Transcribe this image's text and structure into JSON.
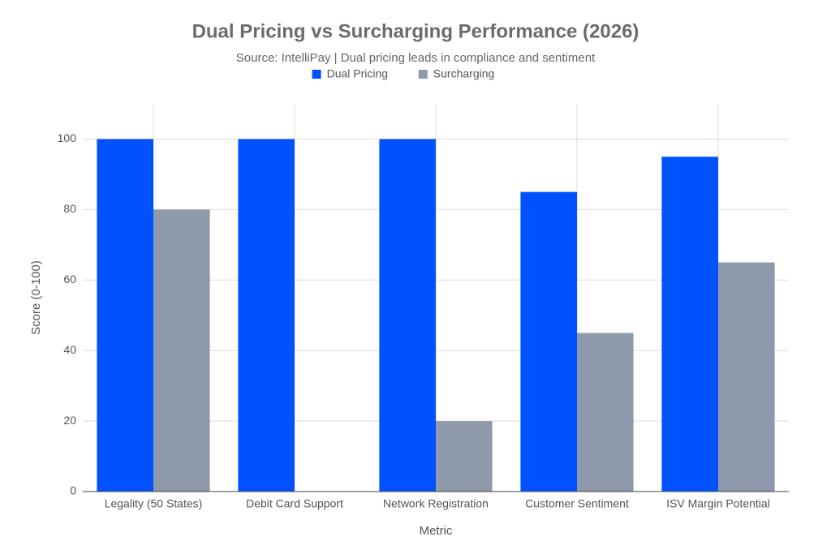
{
  "chart_data": {
    "type": "bar",
    "title": "Dual Pricing vs Surcharging Performance (2026)",
    "subtitle": "Source: IntelliPay | Dual pricing leads in compliance and sentiment",
    "x_label": "Metric",
    "y_label": "Score (0-100)",
    "categories": [
      "Legality (50 States)",
      "Debit Card Support",
      "Network Registration",
      "Customer Sentiment",
      "ISV Margin Potential"
    ],
    "series": [
      {
        "name": "Dual Pricing",
        "color": "#0052ff",
        "values": [
          100,
          100,
          100,
          85,
          95
        ]
      },
      {
        "name": "Surcharging",
        "color": "#8e9aab",
        "values": [
          80,
          0,
          20,
          45,
          65
        ]
      }
    ],
    "ylim": [
      0,
      110
    ],
    "yticks": [
      0,
      20,
      40,
      60,
      80,
      100
    ],
    "grid": true,
    "legend": "top"
  }
}
